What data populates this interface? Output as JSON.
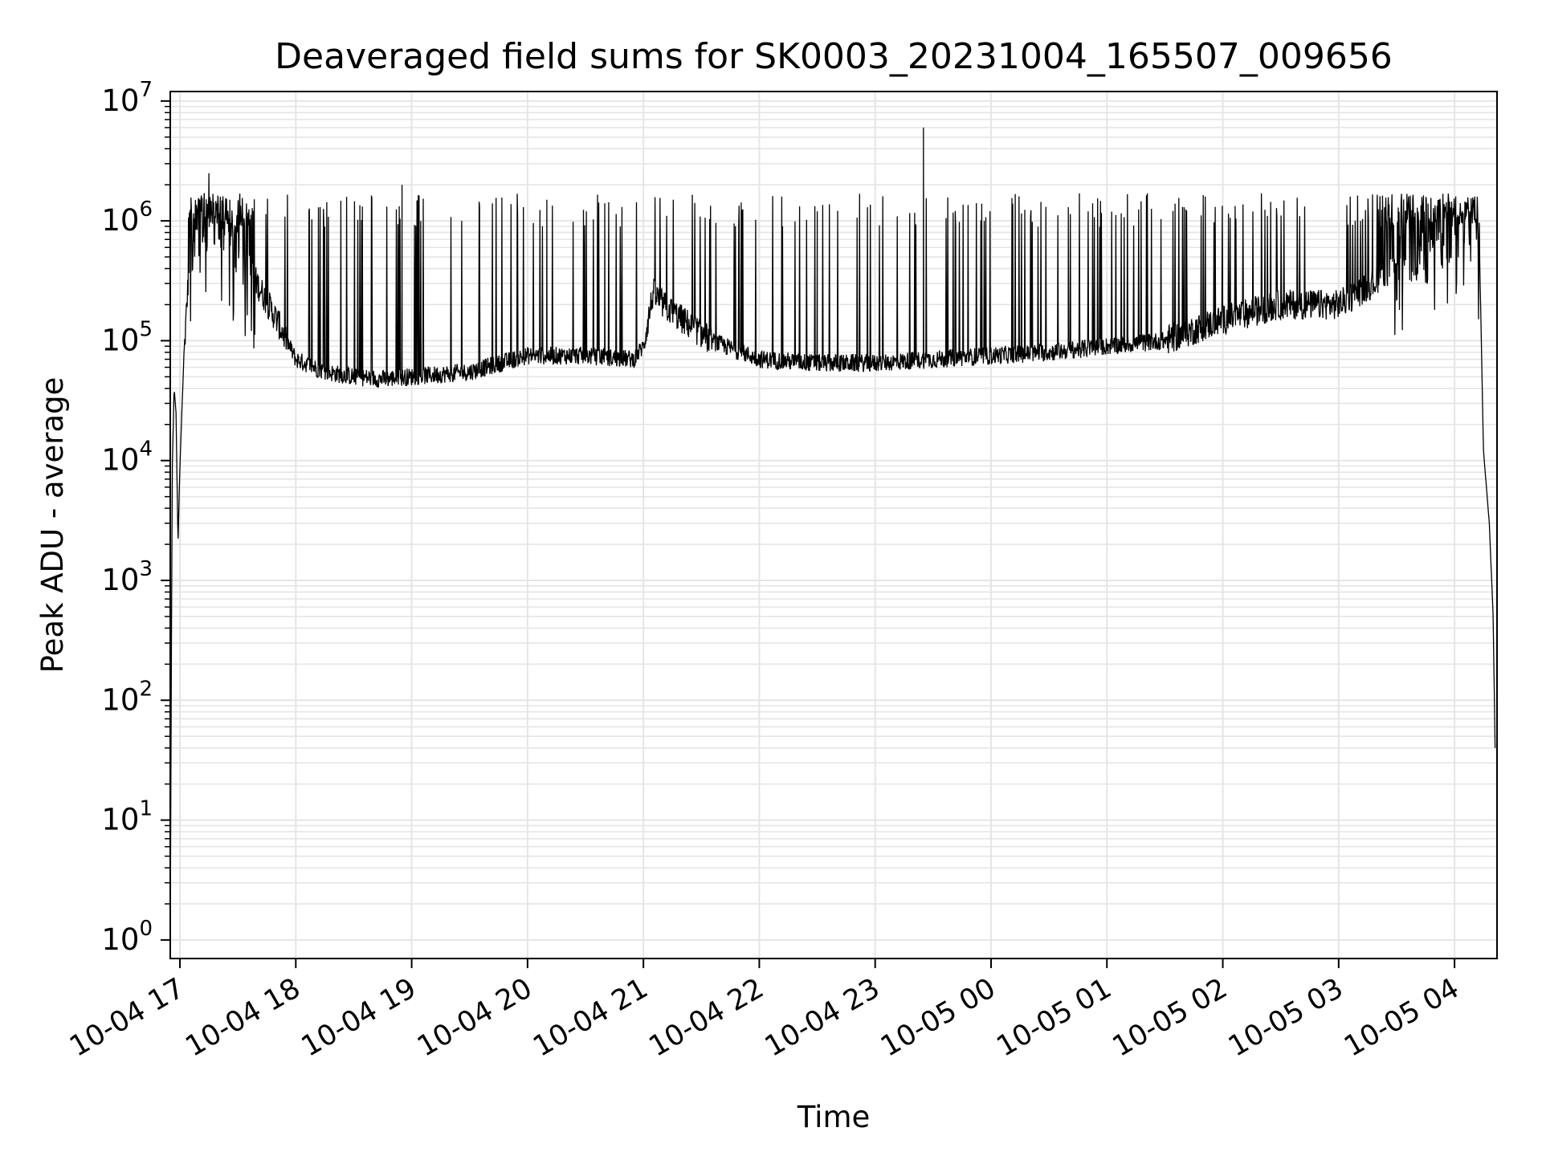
{
  "chart_data": {
    "type": "line",
    "title": "Deaveraged field sums for SK0003_20231004_165507_009656",
    "xlabel": "Time",
    "ylabel": "Peak ADU - average",
    "yscale": "log",
    "ylim": [
      0.7,
      12000000
    ],
    "xlim": [
      "2023-10-04 16:55",
      "2023-10-05 04:22"
    ],
    "x_ticks": [
      "2023-10-04 17:00",
      "2023-10-04 18:00",
      "2023-10-04 19:00",
      "2023-10-04 20:00",
      "2023-10-04 21:00",
      "2023-10-04 22:00",
      "2023-10-04 23:00",
      "2023-10-05 00:00",
      "2023-10-05 01:00",
      "2023-10-05 02:00",
      "2023-10-05 03:00",
      "2023-10-05 04:00"
    ],
    "x_tick_labels": [
      "10-04 17",
      "10-04 18",
      "10-04 19",
      "10-04 20",
      "10-04 21",
      "10-04 22",
      "10-04 23",
      "10-05 00",
      "10-05 01",
      "10-05 02",
      "10-05 03",
      "10-05 04"
    ],
    "y_ticks": [
      1,
      10,
      100,
      1000,
      10000,
      100000,
      1000000,
      10000000
    ],
    "y_tick_labels": [
      {
        "base": "10",
        "exp": "0"
      },
      {
        "base": "10",
        "exp": "1"
      },
      {
        "base": "10",
        "exp": "2"
      },
      {
        "base": "10",
        "exp": "3"
      },
      {
        "base": "10",
        "exp": "4"
      },
      {
        "base": "10",
        "exp": "5"
      },
      {
        "base": "10",
        "exp": "6"
      },
      {
        "base": "10",
        "exp": "7"
      }
    ],
    "grid": true,
    "legend": "none",
    "line_color": "#000000",
    "grid_color": "#e5e5e5",
    "series": [
      {
        "values_note_excluded": false,
        "baseline_points": [
          [
            "2023-10-04 16:55",
            1
          ],
          [
            "2023-10-04 16:56",
            8000
          ],
          [
            "2023-10-04 16:57",
            40000
          ],
          [
            "2023-10-04 16:58",
            25000
          ],
          [
            "2023-10-04 16:59",
            2000
          ],
          [
            "2023-10-04 17:00",
            9000
          ],
          [
            "2023-10-04 17:02",
            70000
          ],
          [
            "2023-10-04 17:05",
            500000
          ],
          [
            "2023-10-04 17:08",
            850000
          ],
          [
            "2023-10-04 17:10",
            950000
          ],
          [
            "2023-10-04 17:20",
            800000
          ],
          [
            "2023-10-04 17:30",
            600000
          ],
          [
            "2023-10-04 17:40",
            300000
          ],
          [
            "2023-10-04 17:50",
            150000
          ],
          [
            "2023-10-04 18:00",
            70000
          ],
          [
            "2023-10-04 18:15",
            55000
          ],
          [
            "2023-10-04 18:30",
            50000
          ],
          [
            "2023-10-04 18:45",
            48000
          ],
          [
            "2023-10-04 19:00",
            50000
          ],
          [
            "2023-10-04 19:30",
            55000
          ],
          [
            "2023-10-04 20:00",
            75000
          ],
          [
            "2023-10-04 20:30",
            75000
          ],
          [
            "2023-10-04 20:55",
            70000
          ],
          [
            "2023-10-04 21:00",
            90000
          ],
          [
            "2023-10-04 21:05",
            250000
          ],
          [
            "2023-10-04 21:10",
            200000
          ],
          [
            "2023-10-04 21:20",
            150000
          ],
          [
            "2023-10-04 21:35",
            100000
          ],
          [
            "2023-10-04 22:00",
            70000
          ],
          [
            "2023-10-04 22:30",
            65000
          ],
          [
            "2023-10-04 23:00",
            65000
          ],
          [
            "2023-10-04 23:30",
            70000
          ],
          [
            "2023-10-05 00:00",
            75000
          ],
          [
            "2023-10-05 00:30",
            80000
          ],
          [
            "2023-10-05 01:00",
            90000
          ],
          [
            "2023-10-05 01:30",
            100000
          ],
          [
            "2023-10-05 02:00",
            150000
          ],
          [
            "2023-10-05 02:30",
            200000
          ],
          [
            "2023-10-05 03:00",
            200000
          ],
          [
            "2023-10-05 03:30",
            400000
          ],
          [
            "2023-10-05 03:50",
            600000
          ],
          [
            "2023-10-05 04:00",
            900000
          ],
          [
            "2023-10-05 04:10",
            1100000
          ],
          [
            "2023-10-05 04:13",
            500000
          ],
          [
            "2023-10-05 04:15",
            12000
          ],
          [
            "2023-10-05 04:18",
            3000
          ],
          [
            "2023-10-05 04:20",
            500
          ],
          [
            "2023-10-05 04:21",
            40
          ]
        ],
        "spikes": [
          [
            "2023-10-04 17:15",
            2500000
          ],
          [
            "2023-10-04 18:55",
            2000000
          ],
          [
            "2023-10-04 20:10",
            1500000
          ],
          [
            "2023-10-04 20:40",
            1400000
          ],
          [
            "2023-10-04 22:30",
            1200000
          ],
          [
            "2023-10-04 23:25",
            6000000
          ],
          [
            "2023-10-05 00:40",
            1300000
          ],
          [
            "2023-10-05 01:40",
            1300000
          ],
          [
            "2023-10-05 02:20",
            1700000
          ],
          [
            "2023-10-05 03:20",
            1650000
          ]
        ]
      }
    ]
  }
}
